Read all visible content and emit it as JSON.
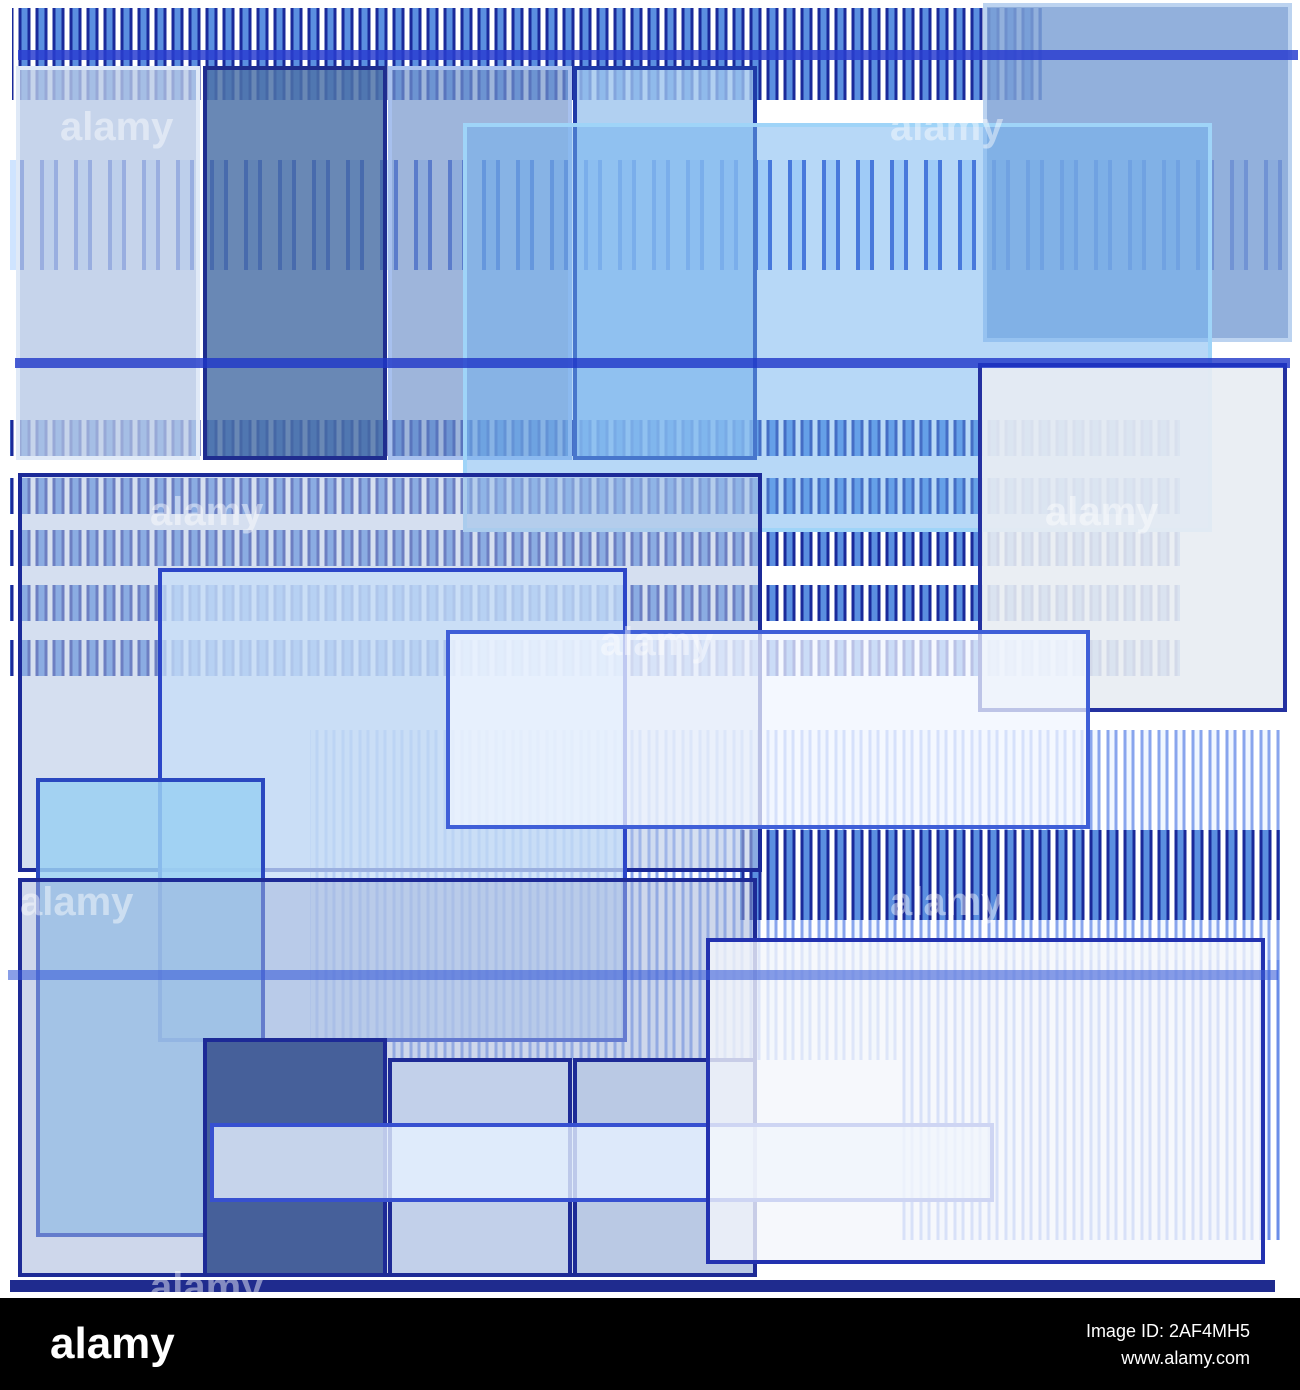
{
  "watermarks": [
    "alamy",
    "alamy",
    "alamy",
    "alamy",
    "alamy",
    "alamy",
    "alamy",
    "alamy"
  ],
  "footer": {
    "logo": "alamy",
    "image_id": "Image ID: 2AF4MH5",
    "url": "www.alamy.com"
  }
}
